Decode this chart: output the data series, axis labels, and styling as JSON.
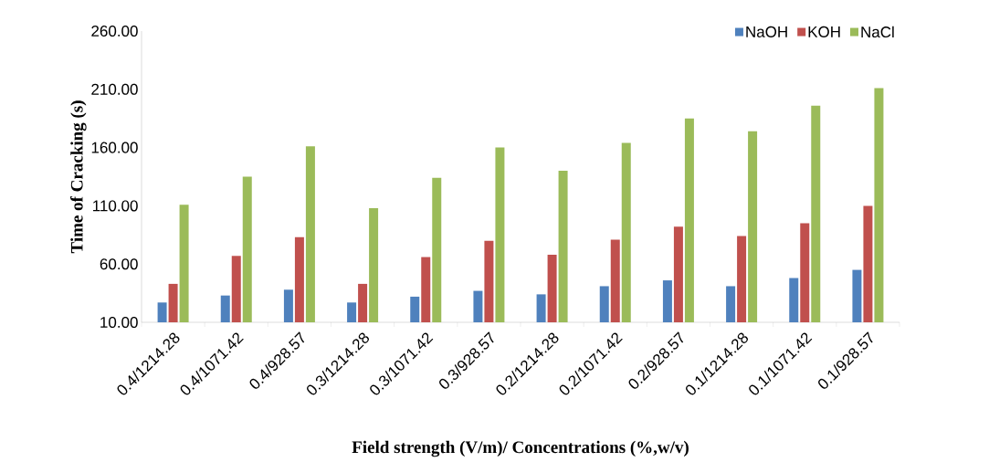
{
  "chart_data": {
    "type": "bar",
    "xlabel": "Field strength (V/m)/ Concentrations (%,w/v)",
    "ylabel": "Time of Cracking (s)",
    "categories": [
      "0.4/1214.28",
      "0.4/1071.42",
      "0.4/928.57",
      "0.3/1214.28",
      "0.3/1071.42",
      "0.3/928.57",
      "0.2/1214.28",
      "0.2/1071.42",
      "0.2/928.57",
      "0.1/1214.28",
      "0.1/1071.42",
      "0.1/928.57"
    ],
    "series": [
      {
        "name": "NaOH",
        "color": "#4f81bd",
        "values": [
          27,
          33,
          38,
          27,
          32,
          37,
          34,
          41,
          46,
          41,
          48,
          55
        ]
      },
      {
        "name": "KOH",
        "color": "#c0504d",
        "values": [
          43,
          67,
          83,
          43,
          66,
          80,
          68,
          81,
          92,
          84,
          95,
          110
        ]
      },
      {
        "name": "NaCl",
        "color": "#9bbb59",
        "values": [
          111,
          135,
          161,
          108,
          134,
          160,
          140,
          164,
          185,
          174,
          196,
          211
        ]
      }
    ],
    "ylim": [
      10,
      260
    ],
    "yticks": [
      {
        "value": 10,
        "label": "10.00"
      },
      {
        "value": 60,
        "label": "60.00"
      },
      {
        "value": 110,
        "label": "110.00"
      },
      {
        "value": 160,
        "label": "160.00"
      },
      {
        "value": 210,
        "label": "210.00"
      },
      {
        "value": 260,
        "label": "260.00"
      }
    ],
    "legend": "top right",
    "grid": false
  }
}
